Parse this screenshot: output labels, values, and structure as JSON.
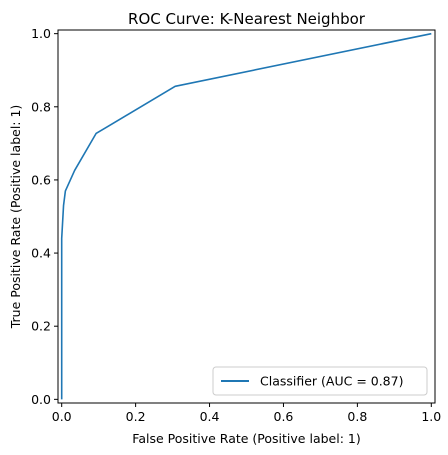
{
  "chart_data": {
    "type": "line",
    "title": "ROC Curve: K-Nearest Neighbor",
    "xlabel": "False Positive Rate (Positive label: 1)",
    "ylabel": "True Positive Rate (Positive label: 1)",
    "xlim": [
      -0.01,
      1.01
    ],
    "ylim": [
      -0.01,
      1.01
    ],
    "x_ticks": [
      0.0,
      0.2,
      0.4,
      0.6,
      0.8,
      1.0
    ],
    "x_tick_labels": [
      "0.0",
      "0.2",
      "0.4",
      "0.6",
      "0.8",
      "1.0"
    ],
    "y_ticks": [
      0.0,
      0.2,
      0.4,
      0.6,
      0.8,
      1.0
    ],
    "y_tick_labels": [
      "0.0",
      "0.2",
      "0.4",
      "0.6",
      "0.8",
      "1.0"
    ],
    "grid": false,
    "legend_position": "lower-right",
    "series": [
      {
        "name": "Classifier (AUC = 0.87)",
        "color": "#1f77b4",
        "x": [
          0.0,
          0.0,
          0.005,
          0.01,
          0.035,
          0.093,
          0.307,
          1.0
        ],
        "y": [
          0.0,
          0.44,
          0.53,
          0.57,
          0.626,
          0.727,
          0.856,
          1.0
        ]
      }
    ]
  }
}
